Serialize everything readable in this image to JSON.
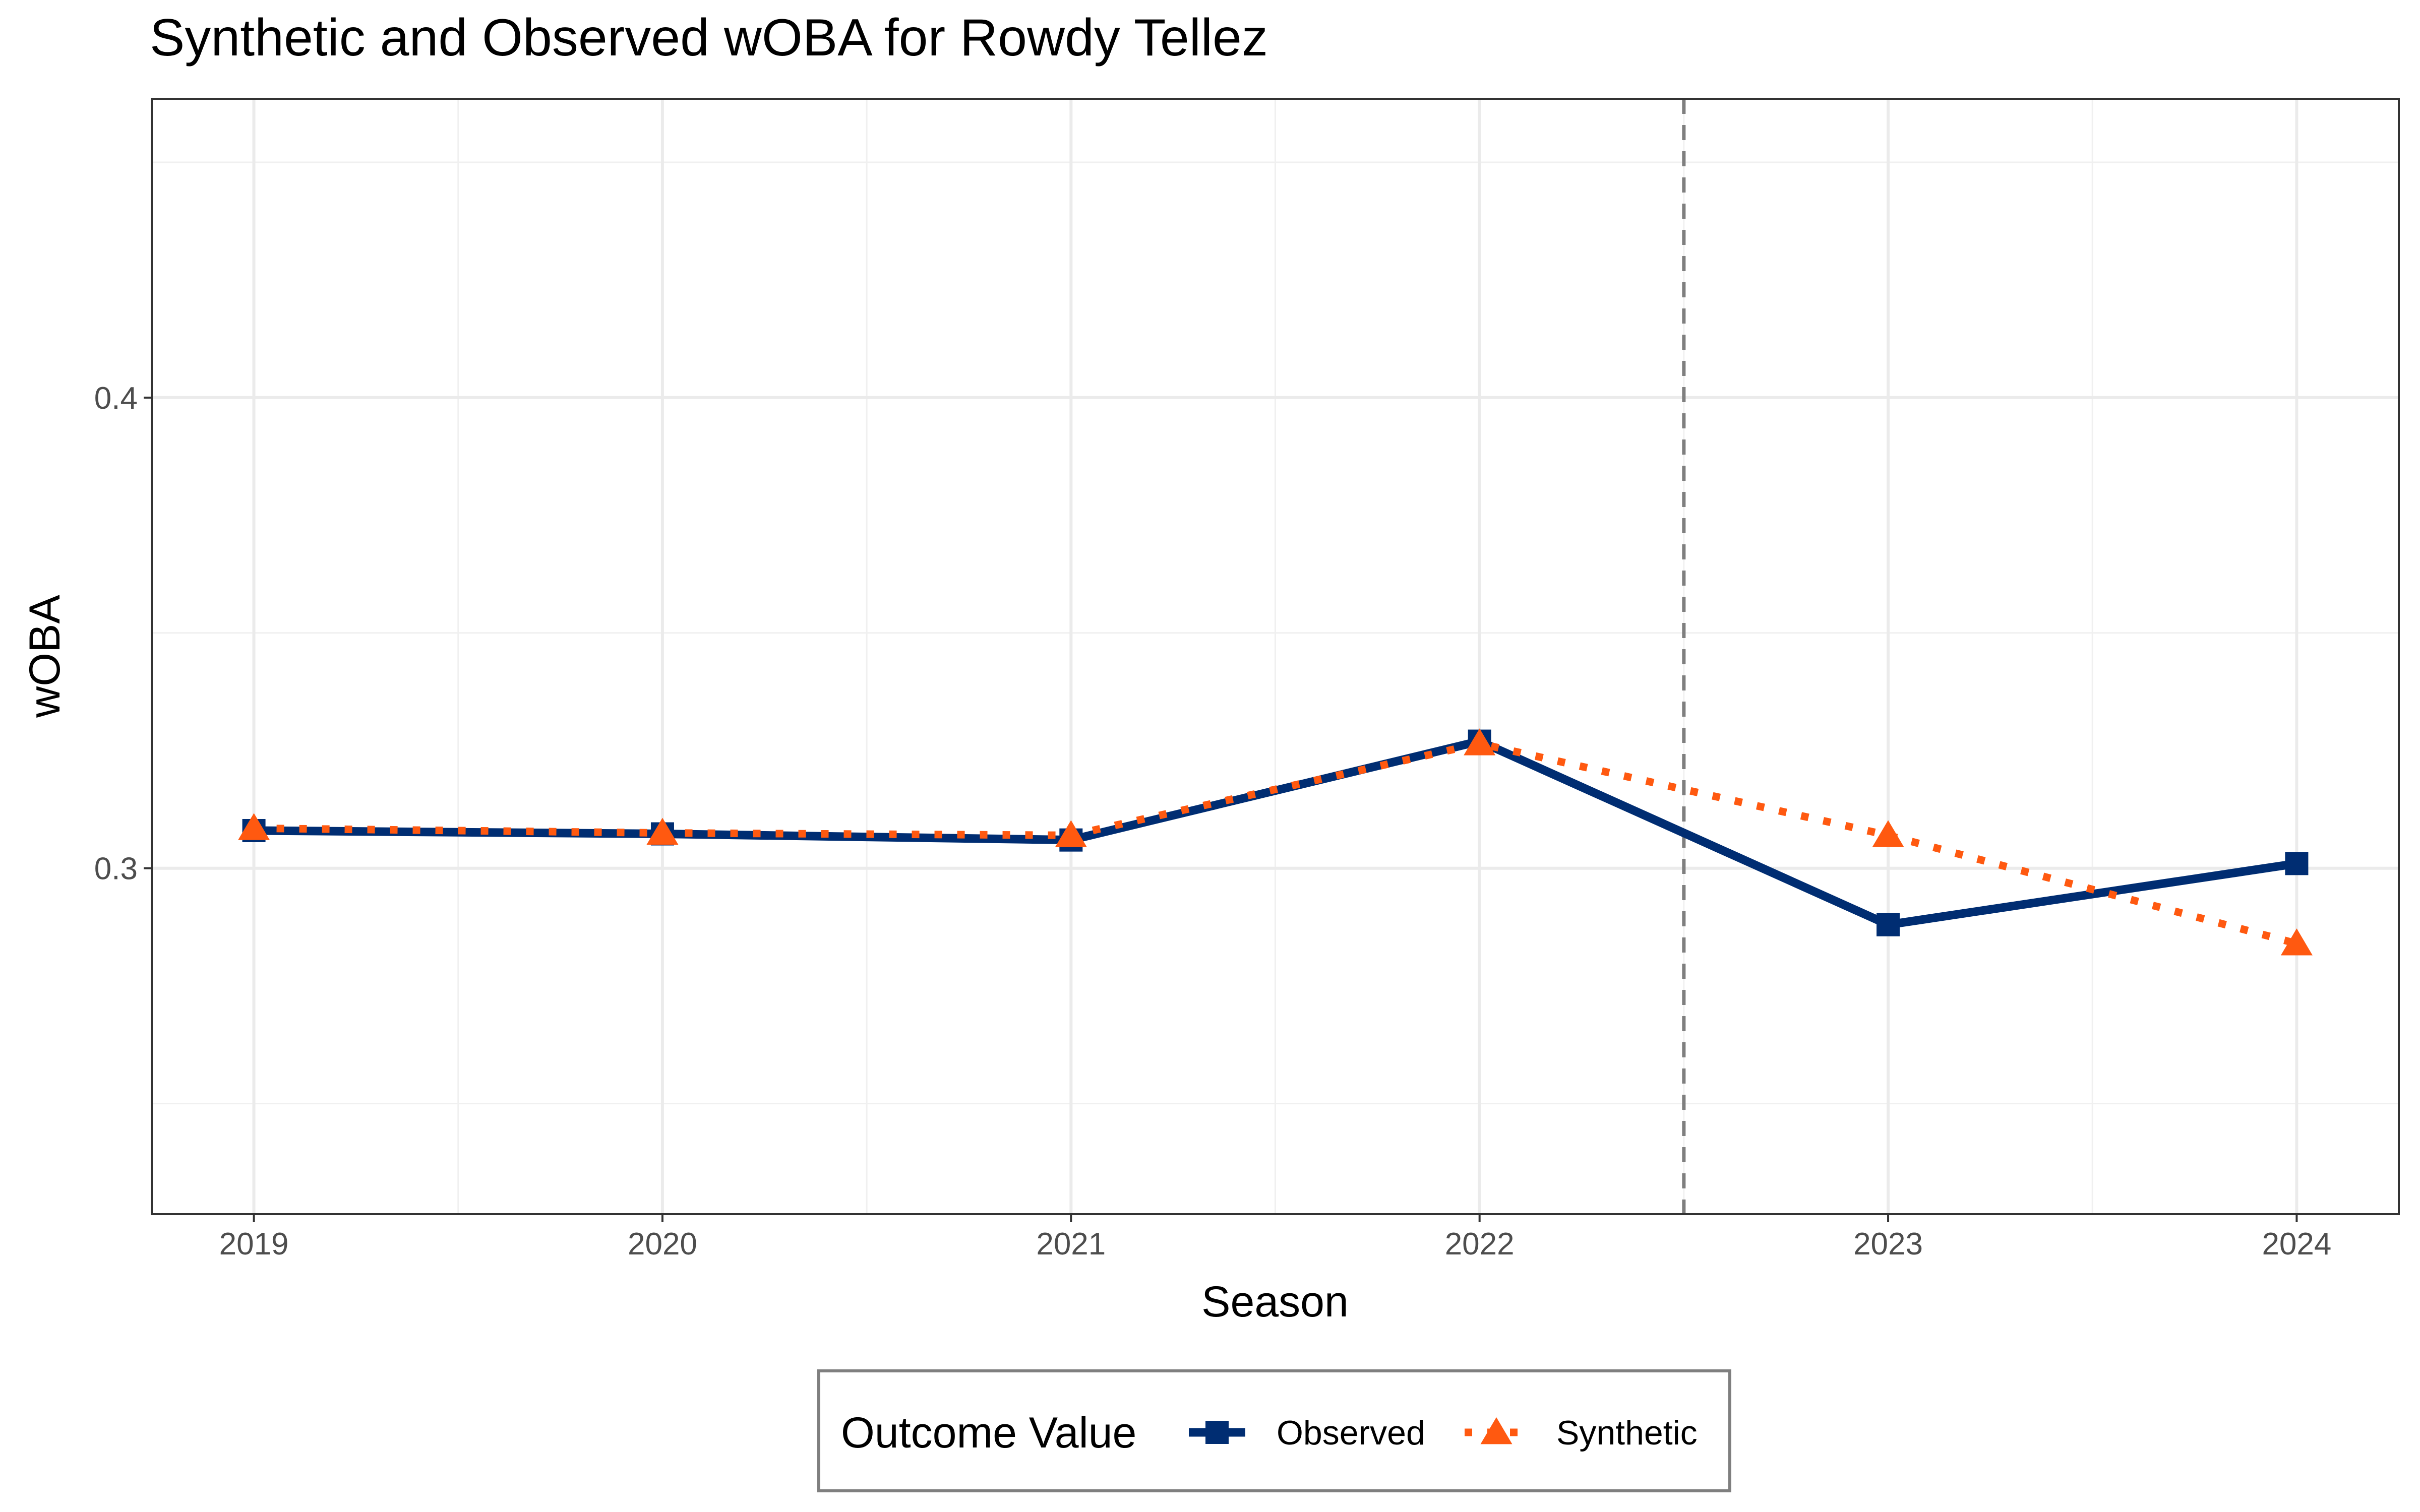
{
  "chart_data": {
    "type": "line",
    "title": "Synthetic and Observed wOBA for Rowdy Tellez",
    "xlabel": "Season",
    "ylabel": "wOBA",
    "x": [
      2019,
      2020,
      2021,
      2022,
      2023,
      2024
    ],
    "x_tick_labels": [
      "2019",
      "2020",
      "2021",
      "2022",
      "2023",
      "2024"
    ],
    "y_ticks": [
      0.3,
      0.4
    ],
    "y_tick_labels": [
      "0.3",
      "0.4"
    ],
    "xlim": [
      2018.75,
      2024.25
    ],
    "ylim": [
      0.2265,
      0.4635
    ],
    "grid": true,
    "treatment_line_x": 2022.5,
    "series": [
      {
        "name": "Observed",
        "color": "#002D72",
        "line_style": "solid",
        "marker": "square",
        "values": [
          0.308,
          0.3073,
          0.306,
          0.327,
          0.288,
          0.301
        ]
      },
      {
        "name": "Synthetic",
        "color": "#FF5910",
        "line_style": "dotted",
        "marker": "triangle",
        "values": [
          0.3085,
          0.3075,
          0.307,
          0.3265,
          0.307,
          0.284
        ]
      }
    ],
    "legend": {
      "title": "Outcome Value",
      "position": "bottom",
      "entries": [
        "Observed",
        "Synthetic"
      ]
    }
  }
}
